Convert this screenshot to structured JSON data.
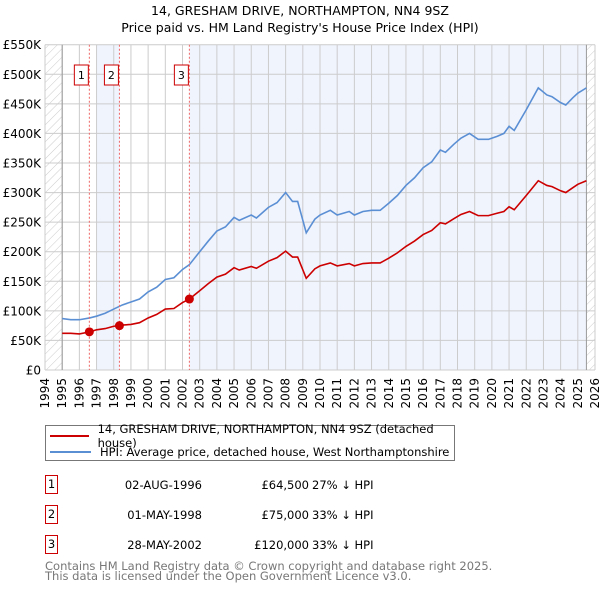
{
  "chart_data": {
    "type": "line",
    "title": "14, GRESHAM DRIVE, NORTHAMPTON, NN4 9SZ",
    "subtitle": "Price paid vs. HM Land Registry's House Price Index (HPI)",
    "xlim": [
      1994,
      2026
    ],
    "ylim": [
      0,
      550
    ],
    "x_ticks": [
      "1994",
      "1995",
      "1996",
      "1997",
      "1998",
      "1999",
      "2000",
      "2001",
      "2002",
      "2003",
      "2004",
      "2005",
      "2006",
      "2007",
      "2008",
      "2009",
      "2010",
      "2011",
      "2012",
      "2013",
      "2014",
      "2015",
      "2016",
      "2017",
      "2018",
      "2019",
      "2020",
      "2021",
      "2022",
      "2023",
      "2024",
      "2025",
      "2026"
    ],
    "y_ticks": [
      {
        "v": 0,
        "label": "£0"
      },
      {
        "v": 50,
        "label": "£50K"
      },
      {
        "v": 100,
        "label": "£100K"
      },
      {
        "v": 150,
        "label": "£150K"
      },
      {
        "v": 200,
        "label": "£200K"
      },
      {
        "v": 250,
        "label": "£250K"
      },
      {
        "v": 300,
        "label": "£300K"
      },
      {
        "v": 350,
        "label": "£350K"
      },
      {
        "v": 400,
        "label": "£400K"
      },
      {
        "v": 450,
        "label": "£450K"
      },
      {
        "v": 500,
        "label": "£500K"
      },
      {
        "v": 550,
        "label": "£550K"
      }
    ],
    "grid": true,
    "data_range": [
      1995,
      2025.5
    ],
    "shaded_ranges": [
      [
        1997,
        1998.33
      ],
      [
        2002.4,
        2025.5
      ]
    ],
    "series": [
      {
        "name": "14, GRESHAM DRIVE, NORTHAMPTON, NN4 9SZ (detached house)",
        "color": "#cc0000",
        "points": [
          [
            1995,
            62
          ],
          [
            1995.5,
            62
          ],
          [
            1996,
            61
          ],
          [
            1996.6,
            64.5
          ],
          [
            1997,
            68
          ],
          [
            1997.5,
            70
          ],
          [
            1998,
            74
          ],
          [
            1998.33,
            75
          ],
          [
            1998.5,
            76
          ],
          [
            1999,
            77
          ],
          [
            1999.5,
            80
          ],
          [
            2000,
            88
          ],
          [
            2000.5,
            94
          ],
          [
            2001,
            103
          ],
          [
            2001.5,
            104
          ],
          [
            2002,
            114
          ],
          [
            2002.4,
            120
          ],
          [
            2003,
            134
          ],
          [
            2003.5,
            146
          ],
          [
            2004,
            157
          ],
          [
            2004.5,
            162
          ],
          [
            2005,
            173
          ],
          [
            2005.3,
            169
          ],
          [
            2006,
            175
          ],
          [
            2006.3,
            172
          ],
          [
            2007,
            184
          ],
          [
            2007.5,
            190
          ],
          [
            2008,
            201
          ],
          [
            2008.4,
            191
          ],
          [
            2008.7,
            191
          ],
          [
            2009.2,
            155
          ],
          [
            2009.7,
            171
          ],
          [
            2010,
            176
          ],
          [
            2010.6,
            181
          ],
          [
            2011,
            176
          ],
          [
            2011.7,
            180
          ],
          [
            2012,
            176
          ],
          [
            2012.5,
            180
          ],
          [
            2013,
            181
          ],
          [
            2013.5,
            181
          ],
          [
            2014,
            189
          ],
          [
            2014.5,
            198
          ],
          [
            2015,
            209
          ],
          [
            2015.5,
            218
          ],
          [
            2016,
            229
          ],
          [
            2016.5,
            236
          ],
          [
            2017,
            249
          ],
          [
            2017.3,
            247
          ],
          [
            2017.8,
            256
          ],
          [
            2018.2,
            263
          ],
          [
            2018.7,
            268
          ],
          [
            2019.2,
            261
          ],
          [
            2019.8,
            261
          ],
          [
            2020.3,
            265
          ],
          [
            2020.7,
            268
          ],
          [
            2021,
            276
          ],
          [
            2021.3,
            271
          ],
          [
            2022,
            295
          ],
          [
            2022.7,
            320
          ],
          [
            2023.2,
            312
          ],
          [
            2023.5,
            310
          ],
          [
            2024,
            303
          ],
          [
            2024.3,
            300
          ],
          [
            2024.7,
            308
          ],
          [
            2025,
            314
          ],
          [
            2025.5,
            320
          ]
        ]
      },
      {
        "name": "HPI: Average price, detached house, West Northamptonshire",
        "color": "#5b8fd4",
        "points": [
          [
            1995,
            87
          ],
          [
            1995.5,
            85
          ],
          [
            1996,
            85
          ],
          [
            1996.6,
            88
          ],
          [
            1997,
            91
          ],
          [
            1997.5,
            96
          ],
          [
            1998,
            103
          ],
          [
            1998.5,
            110
          ],
          [
            1999,
            115
          ],
          [
            1999.5,
            120
          ],
          [
            2000,
            132
          ],
          [
            2000.5,
            140
          ],
          [
            2001,
            153
          ],
          [
            2001.5,
            156
          ],
          [
            2002,
            170
          ],
          [
            2002.4,
            178
          ],
          [
            2003,
            200
          ],
          [
            2003.5,
            218
          ],
          [
            2004,
            235
          ],
          [
            2004.5,
            242
          ],
          [
            2005,
            258
          ],
          [
            2005.3,
            253
          ],
          [
            2006,
            262
          ],
          [
            2006.3,
            257
          ],
          [
            2007,
            275
          ],
          [
            2007.5,
            283
          ],
          [
            2008,
            300
          ],
          [
            2008.4,
            285
          ],
          [
            2008.7,
            285
          ],
          [
            2009.2,
            232
          ],
          [
            2009.7,
            255
          ],
          [
            2010,
            262
          ],
          [
            2010.6,
            270
          ],
          [
            2011,
            262
          ],
          [
            2011.7,
            268
          ],
          [
            2012,
            262
          ],
          [
            2012.5,
            268
          ],
          [
            2013,
            270
          ],
          [
            2013.5,
            270
          ],
          [
            2014,
            282
          ],
          [
            2014.5,
            295
          ],
          [
            2015,
            312
          ],
          [
            2015.5,
            325
          ],
          [
            2016,
            342
          ],
          [
            2016.5,
            352
          ],
          [
            2017,
            372
          ],
          [
            2017.3,
            368
          ],
          [
            2017.8,
            382
          ],
          [
            2018.2,
            392
          ],
          [
            2018.7,
            400
          ],
          [
            2019.2,
            390
          ],
          [
            2019.8,
            390
          ],
          [
            2020.3,
            395
          ],
          [
            2020.7,
            400
          ],
          [
            2021,
            412
          ],
          [
            2021.3,
            405
          ],
          [
            2022,
            440
          ],
          [
            2022.7,
            477
          ],
          [
            2023.2,
            465
          ],
          [
            2023.5,
            462
          ],
          [
            2024,
            452
          ],
          [
            2024.3,
            448
          ],
          [
            2024.7,
            460
          ],
          [
            2025,
            468
          ],
          [
            2025.5,
            477
          ]
        ]
      }
    ],
    "sales": [
      {
        "label": "1",
        "x": 1996.58,
        "y": 64.5,
        "date": "02-AUG-1996",
        "price": "£64,500",
        "hpi": "27% ↓ HPI"
      },
      {
        "label": "2",
        "x": 1998.33,
        "y": 75,
        "date": "01-MAY-1998",
        "price": "£75,000",
        "hpi": "33% ↓ HPI"
      },
      {
        "label": "3",
        "x": 2002.4,
        "y": 120,
        "date": "28-MAY-2002",
        "price": "£120,000",
        "hpi": "33% ↓ HPI"
      }
    ]
  },
  "footer": {
    "line1": "Contains HM Land Registry data © Crown copyright and database right 2025.",
    "line2": "This data is licensed under the Open Government Licence v3.0."
  }
}
